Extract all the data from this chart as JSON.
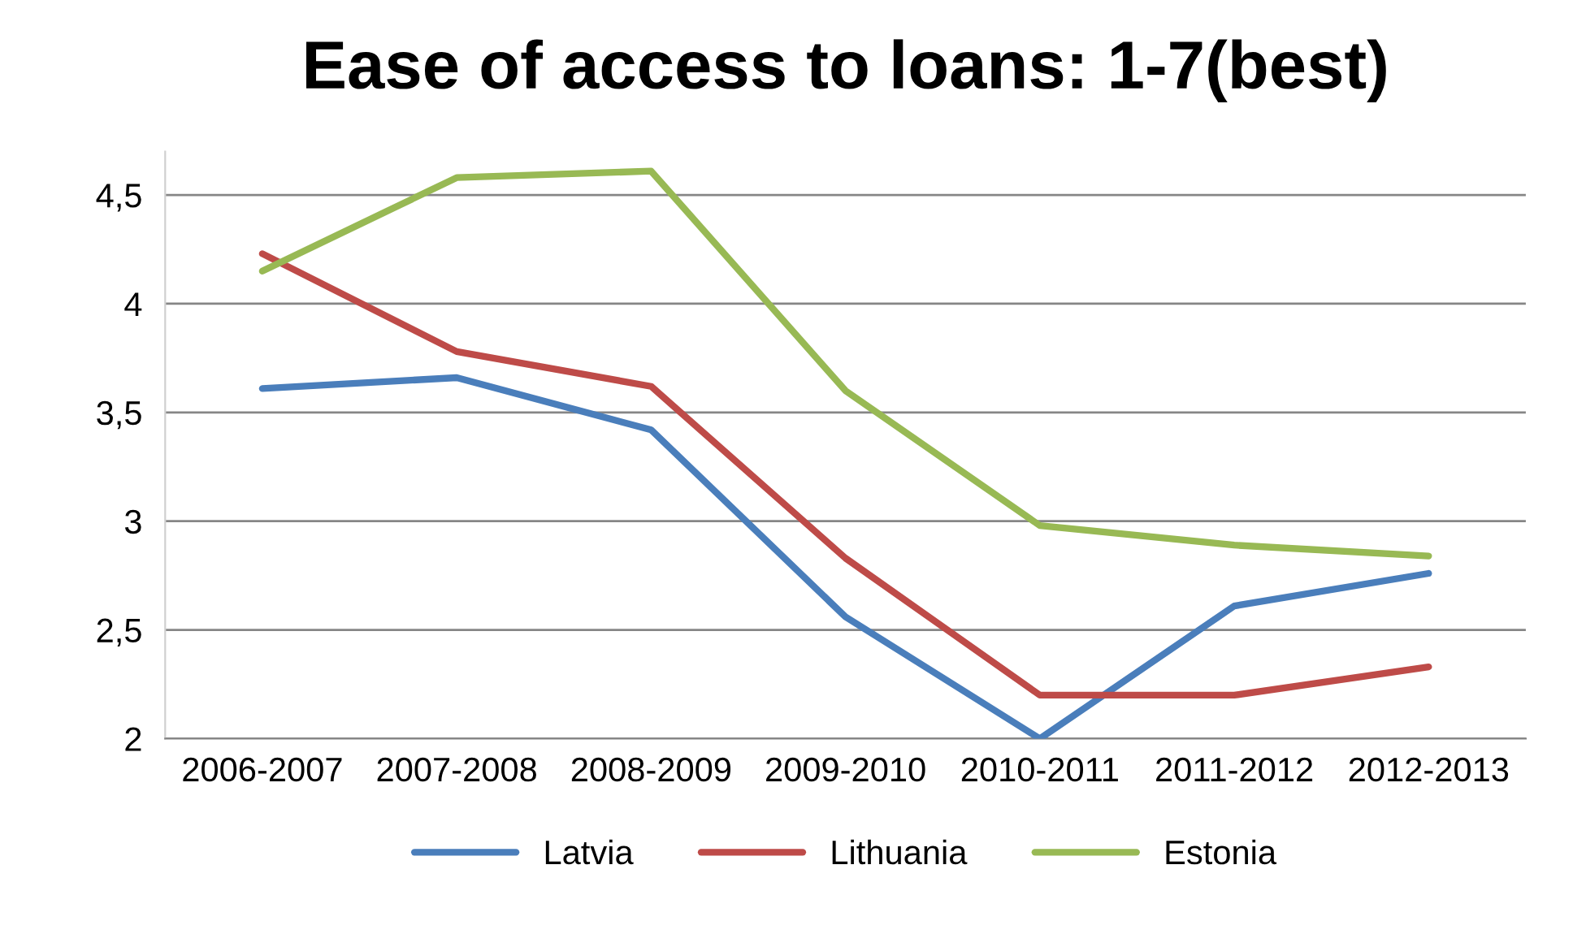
{
  "chart_data": {
    "type": "line",
    "title": "Ease of access to loans: 1-7(best)",
    "categories": [
      "2006-2007",
      "2007-2008",
      "2008-2009",
      "2009-2010",
      "2010-2011",
      "2011-2012",
      "2012-2013"
    ],
    "series": [
      {
        "name": "Latvia",
        "color": "#4a7ebb",
        "values": [
          3.61,
          3.66,
          3.42,
          2.56,
          2.0,
          2.61,
          2.76
        ]
      },
      {
        "name": "Lithuania",
        "color": "#be4b48",
        "values": [
          4.23,
          3.78,
          3.62,
          2.83,
          2.2,
          2.2,
          2.33
        ]
      },
      {
        "name": "Estonia",
        "color": "#98b954",
        "values": [
          4.15,
          4.58,
          4.61,
          3.6,
          2.98,
          2.89,
          2.84
        ]
      }
    ],
    "ylim": [
      2,
      4.7
    ],
    "yticks": [
      2,
      {
        "value": 2.5,
        "label": "2,5"
      },
      3,
      {
        "value": 3.5,
        "label": "3,5"
      },
      4,
      {
        "value": 4.5,
        "label": "4,5"
      }
    ],
    "grid": "y",
    "legend": "bottom",
    "marker": "none",
    "line_style": "solid"
  }
}
